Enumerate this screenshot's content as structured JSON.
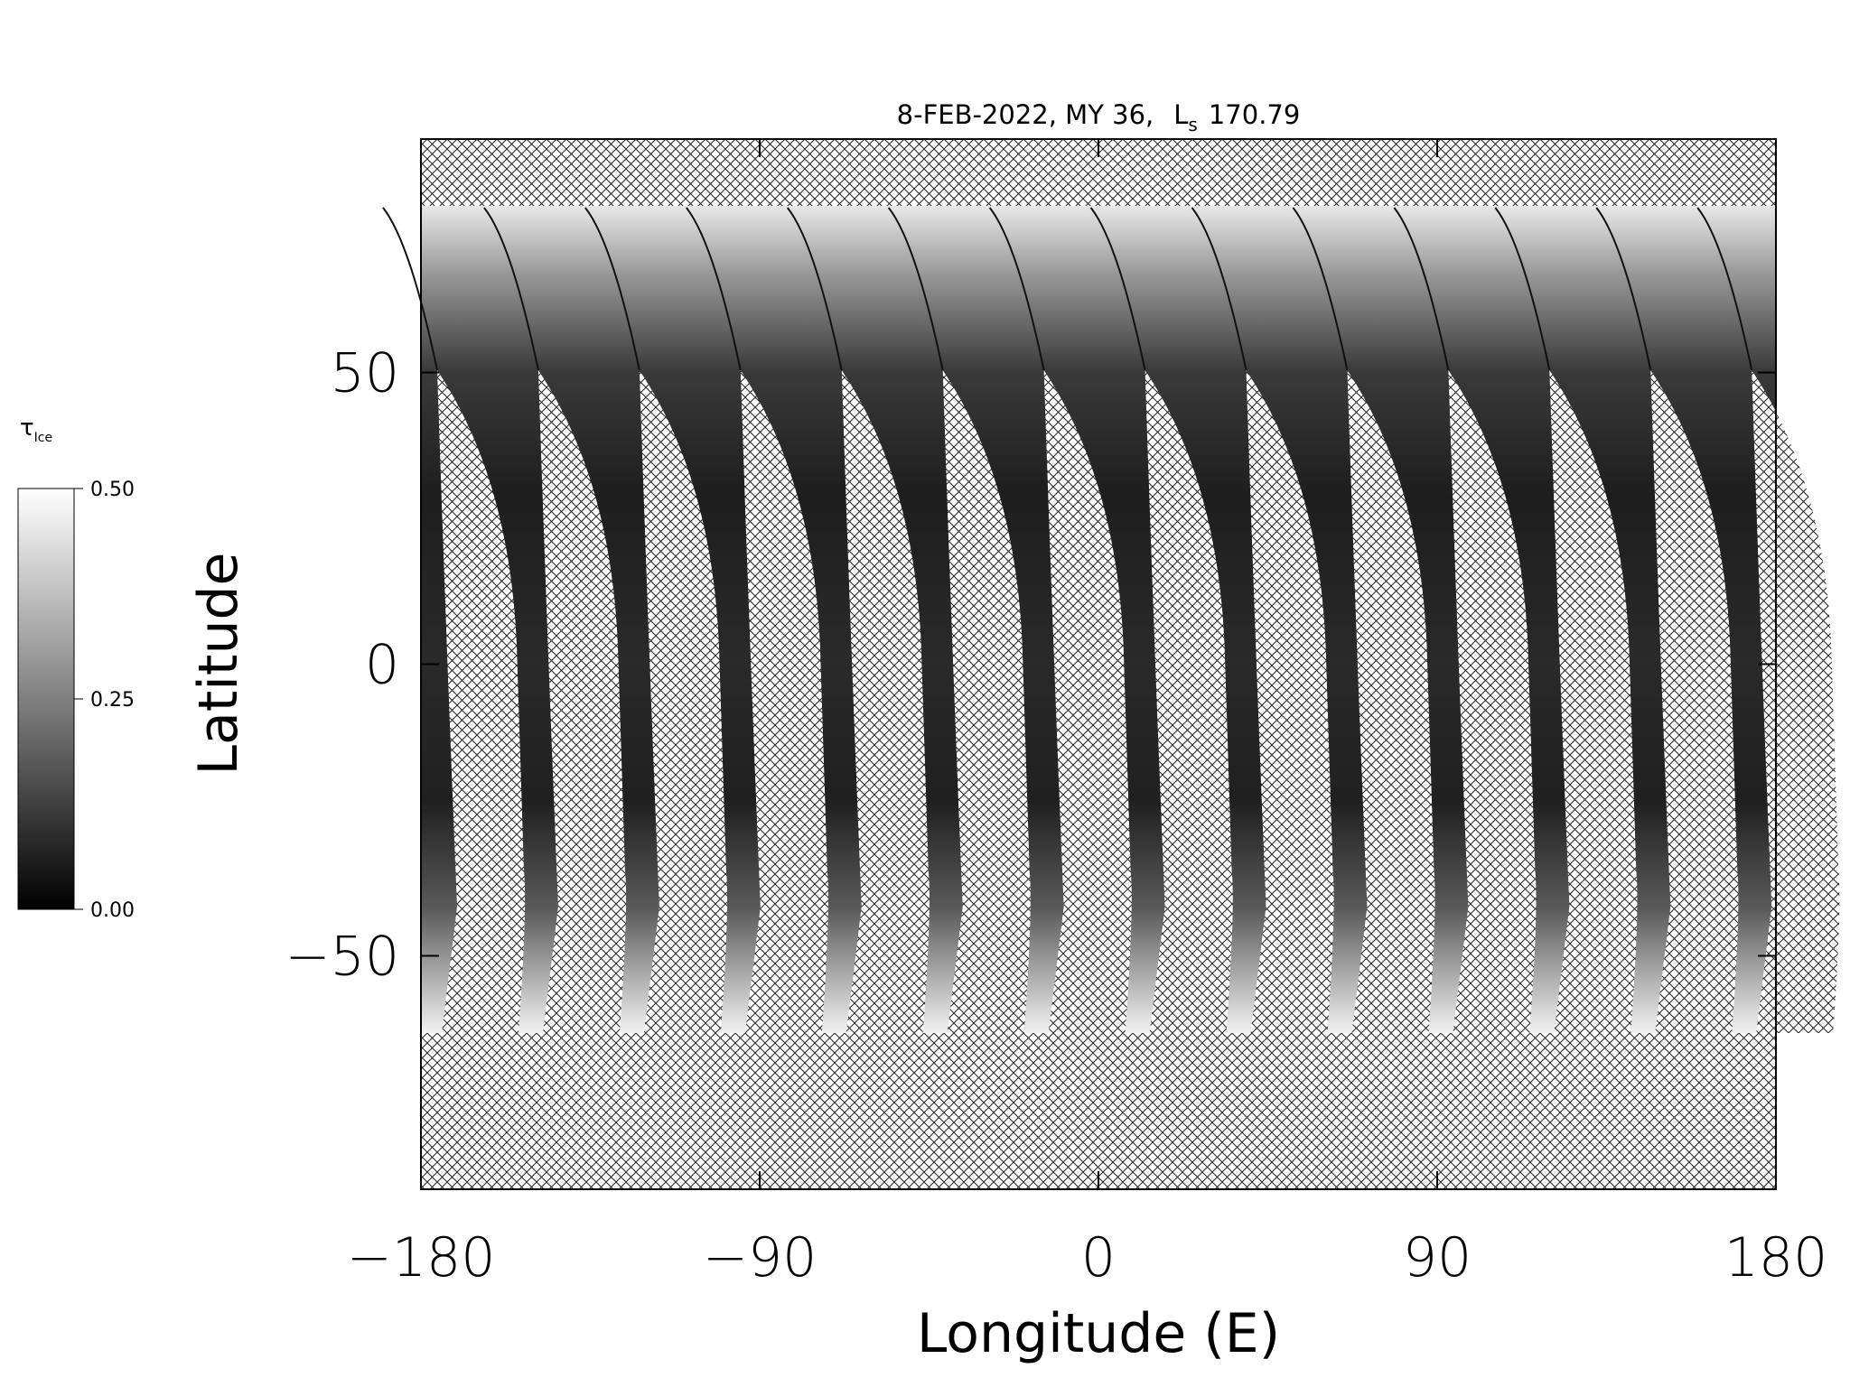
{
  "chart_data": {
    "type": "map",
    "title": {
      "text": "8-FEB-2022, MY 36,",
      "ls_symbol": "L",
      "ls_subscript": "s",
      "ls_value": "170.79"
    },
    "xlabel": "Longitude (E)",
    "ylabel": "Latitude",
    "xlim": [
      -180,
      180
    ],
    "xticks": [
      {
        "value": -180,
        "label": "−180"
      },
      {
        "value": -90,
        "label": "−90"
      },
      0,
      90,
      180
    ],
    "ylim": [
      -90,
      90
    ],
    "yticks": [
      {
        "value": -50,
        "label": "−50"
      },
      0,
      50
    ],
    "colorbar": {
      "label": "τ",
      "label_subscript": "Ice",
      "clim": [
        0,
        0.5
      ],
      "cticks": [
        {
          "value": 0,
          "label": "0.00"
        },
        {
          "value": 0.25,
          "label": "0.25"
        },
        {
          "value": 0.5,
          "label": "0.50"
        }
      ]
    }
  }
}
